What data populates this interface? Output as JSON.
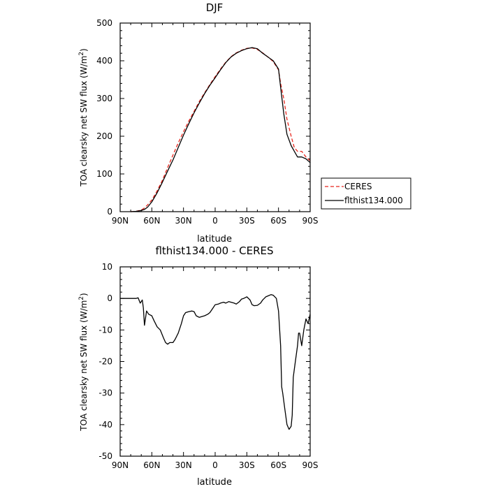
{
  "chart_data": [
    {
      "type": "line",
      "title": "DJF",
      "xlabel": "latitude",
      "ylabel": "TOA clearsky net SW flux (W/m",
      "ylabel_sup": "2",
      "ylabel_end": ")",
      "xlim": [
        -90,
        90
      ],
      "ylim": [
        0,
        500
      ],
      "x_ticks": [
        -90,
        -60,
        -30,
        0,
        30,
        60,
        90
      ],
      "x_tick_labels": [
        "90N",
        "60N",
        "30N",
        "0",
        "30S",
        "60S",
        "90S"
      ],
      "y_ticks": [
        0,
        100,
        200,
        300,
        400,
        500
      ],
      "y_tick_labels": [
        "0",
        "100",
        "200",
        "300",
        "400",
        "500"
      ],
      "legend_position": "right",
      "series": [
        {
          "name": "CERES",
          "color": "#e8261d",
          "dash": "dashed",
          "x": [
            -80,
            -75,
            -70,
            -67,
            -64,
            -60,
            -55,
            -50,
            -45,
            -40,
            -35,
            -30,
            -25,
            -20,
            -15,
            -10,
            -5,
            0,
            5,
            10,
            15,
            20,
            25,
            30,
            35,
            40,
            45,
            50,
            55,
            60,
            62,
            65,
            68,
            72,
            75,
            78,
            82,
            86,
            90
          ],
          "y": [
            0,
            1,
            4,
            10,
            18,
            31,
            55,
            83,
            117,
            150,
            182,
            212,
            240,
            266,
            292,
            315,
            337,
            358,
            378,
            396,
            411,
            421,
            428,
            433,
            434,
            430,
            421,
            410,
            398,
            376,
            340,
            300,
            245,
            200,
            170,
            160,
            160,
            145,
            135
          ]
        },
        {
          "name": "flthist134.000",
          "color": "#000000",
          "dash": "solid",
          "x": [
            -80,
            -75,
            -70,
            -67,
            -64,
            -60,
            -55,
            -50,
            -45,
            -40,
            -35,
            -30,
            -25,
            -20,
            -15,
            -10,
            -5,
            0,
            5,
            10,
            15,
            20,
            25,
            30,
            35,
            40,
            45,
            50,
            55,
            60,
            62,
            65,
            68,
            72,
            75,
            78,
            82,
            86,
            90
          ],
          "y": [
            0,
            1,
            3,
            6,
            12,
            26,
            50,
            78,
            108,
            137,
            170,
            203,
            233,
            262,
            288,
            313,
            335,
            355,
            376,
            395,
            410,
            420,
            427,
            432,
            435,
            432,
            420,
            410,
            400,
            378,
            330,
            260,
            205,
            175,
            160,
            145,
            145,
            140,
            130
          ]
        }
      ]
    },
    {
      "type": "line",
      "title": "flthist134.000 - CERES",
      "xlabel": "latitude",
      "ylabel": "TOA clearsky net SW flux (W/m",
      "ylabel_sup": "2",
      "ylabel_end": ")",
      "xlim": [
        -90,
        90
      ],
      "ylim": [
        -50,
        10
      ],
      "x_ticks": [
        -90,
        -60,
        -30,
        0,
        30,
        60,
        90
      ],
      "x_tick_labels": [
        "90N",
        "60N",
        "30N",
        "0",
        "30S",
        "60S",
        "90S"
      ],
      "y_ticks": [
        -50,
        -40,
        -30,
        -20,
        -10,
        0,
        10
      ],
      "y_tick_labels": [
        "-50",
        "-40",
        "-30",
        "-20",
        "-10",
        "0",
        "10"
      ],
      "series": [
        {
          "color": "#000000",
          "dash": "solid",
          "x": [
            -90,
            -80,
            -75,
            -73,
            -71,
            -70,
            -69,
            -68,
            -67,
            -65,
            -63,
            -60,
            -58,
            -55,
            -52,
            -49,
            -47,
            -45,
            -43,
            -40,
            -38,
            -35,
            -32,
            -30,
            -28,
            -25,
            -22,
            -20,
            -18,
            -15,
            -12,
            -10,
            -7,
            -5,
            -2,
            0,
            3,
            5,
            8,
            10,
            13,
            15,
            18,
            20,
            23,
            25,
            27,
            30,
            33,
            35,
            37,
            40,
            43,
            45,
            48,
            50,
            53,
            55,
            58,
            60,
            62,
            63,
            64,
            66,
            68,
            70,
            72,
            73,
            74,
            76,
            78,
            79,
            80,
            82,
            84,
            86,
            88,
            90
          ],
          "y": [
            0,
            0,
            0,
            0.2,
            -1.5,
            -1,
            -0.5,
            -3,
            -8.5,
            -4,
            -5,
            -5.5,
            -7,
            -9,
            -10,
            -12.5,
            -14,
            -14.5,
            -14,
            -14,
            -13,
            -11,
            -8,
            -5.5,
            -4.5,
            -4.2,
            -4,
            -4.2,
            -5.5,
            -6,
            -5.7,
            -5.5,
            -5,
            -4.5,
            -3,
            -2,
            -1.8,
            -1.5,
            -1.2,
            -1.5,
            -1,
            -1.2,
            -1.5,
            -1.8,
            -1,
            -0.2,
            0,
            0.5,
            -0.5,
            -2,
            -2.3,
            -2.2,
            -1.5,
            -0.5,
            0.5,
            0.8,
            1.2,
            1,
            0,
            -4,
            -15,
            -28,
            -30,
            -35,
            -40,
            -41.5,
            -40.5,
            -37,
            -25,
            -20,
            -15,
            -11,
            -11,
            -15,
            -10,
            -6.5,
            -8,
            -5
          ]
        }
      ]
    }
  ]
}
